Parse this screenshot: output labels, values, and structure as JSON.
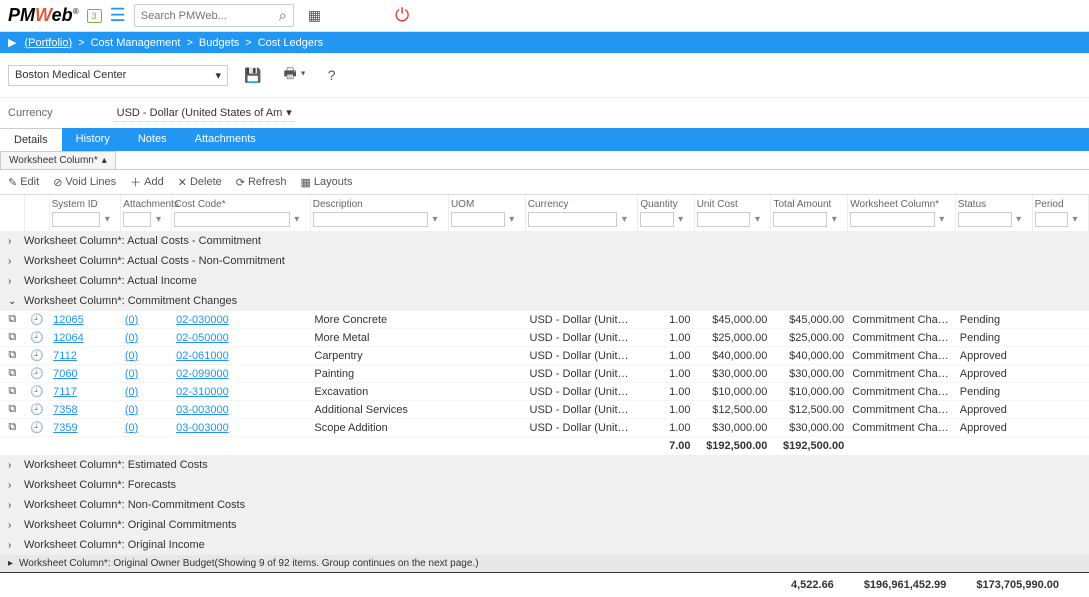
{
  "topbar": {
    "shield_value": "3",
    "search_placeholder": "Search PMWeb..."
  },
  "breadcrumb": {
    "items": [
      "(Portfolio)",
      "Cost Management",
      "Budgets",
      "Cost Ledgers"
    ]
  },
  "selector": {
    "project": "Boston Medical Center"
  },
  "currency": {
    "label": "Currency",
    "value": "USD - Dollar (United States of Am"
  },
  "tabs": [
    "Details",
    "History",
    "Notes",
    "Attachments"
  ],
  "subtab": "Worksheet Column*",
  "toolbar": {
    "edit": "Edit",
    "void": "Void Lines",
    "add": "Add",
    "delete": "Delete",
    "refresh": "Refresh",
    "layouts": "Layouts"
  },
  "columns": {
    "system_id": "System ID",
    "attachments": "Attachments",
    "cost_code": "Cost Code*",
    "description": "Description",
    "uom": "UOM",
    "currency": "Currency",
    "quantity": "Quantity",
    "unit_cost": "Unit Cost",
    "total_amount": "Total Amount",
    "worksheet_column": "Worksheet Column*",
    "status": "Status",
    "period": "Period"
  },
  "colwidths": {
    "icons": 24,
    "clock": 24,
    "system_id": 70,
    "attachments": 50,
    "cost_code": 135,
    "description": 135,
    "uom": 75,
    "currency": 110,
    "quantity": 55,
    "unit_cost": 75,
    "total_amount": 75,
    "worksheet_column": 105,
    "status": 75,
    "period": 55
  },
  "groups_collapsed_top": [
    "Worksheet Column*: Actual Costs - Commitment",
    "Worksheet Column*: Actual Costs - Non-Commitment",
    "Worksheet Column*: Actual Income"
  ],
  "group_expanded": {
    "label": "Worksheet Column*: Commitment Changes",
    "rows": [
      {
        "id": "12065",
        "att": "(0)",
        "code": "02-030000",
        "desc": "More Concrete",
        "curr": "USD - Dollar (United States",
        "qty": "1.00",
        "unit": "$45,000.00",
        "total": "$45,000.00",
        "wc": "Commitment Changes",
        "status": "Pending"
      },
      {
        "id": "12064",
        "att": "(0)",
        "code": "02-050000",
        "desc": "More Metal",
        "curr": "USD - Dollar (United States",
        "qty": "1.00",
        "unit": "$25,000.00",
        "total": "$25,000.00",
        "wc": "Commitment Changes",
        "status": "Pending"
      },
      {
        "id": "7112",
        "att": "(0)",
        "code": "02-061000",
        "desc": "Carpentry",
        "curr": "USD - Dollar (United States",
        "qty": "1.00",
        "unit": "$40,000.00",
        "total": "$40,000.00",
        "wc": "Commitment Changes",
        "status": "Approved"
      },
      {
        "id": "7060",
        "att": "(0)",
        "code": "02-099000",
        "desc": "Painting",
        "curr": "USD - Dollar (United States",
        "qty": "1.00",
        "unit": "$30,000.00",
        "total": "$30,000.00",
        "wc": "Commitment Changes",
        "status": "Approved"
      },
      {
        "id": "7117",
        "att": "(0)",
        "code": "02-310000",
        "desc": "Excavation",
        "curr": "USD - Dollar (United States",
        "qty": "1.00",
        "unit": "$10,000.00",
        "total": "$10,000.00",
        "wc": "Commitment Changes",
        "status": "Pending"
      },
      {
        "id": "7358",
        "att": "(0)",
        "code": "03-003000",
        "desc": "Additional Services",
        "curr": "USD - Dollar (United States",
        "qty": "1.00",
        "unit": "$12,500.00",
        "total": "$12,500.00",
        "wc": "Commitment Changes",
        "status": "Approved"
      },
      {
        "id": "7359",
        "att": "(0)",
        "code": "03-003000",
        "desc": "Scope Addition",
        "curr": "USD - Dollar (United States",
        "qty": "1.00",
        "unit": "$30,000.00",
        "total": "$30,000.00",
        "wc": "Commitment Changes",
        "status": "Approved"
      }
    ],
    "subtotal": {
      "qty": "7.00",
      "unit": "$192,500.00",
      "total": "$192,500.00"
    }
  },
  "groups_collapsed_bottom": [
    "Worksheet Column*: Estimated Costs",
    "Worksheet Column*: Forecasts",
    "Worksheet Column*: Non-Commitment Costs",
    "Worksheet Column*: Original Commitments",
    "Worksheet Column*: Original Income"
  ],
  "pager_group": "Worksheet Column*: Original Owner Budget(Showing 9 of 92 items. Group continues on the next page.)",
  "grand_total": {
    "qty": "4,522.66",
    "unit": "$196,961,452.99",
    "total": "$173,705,990.00"
  },
  "colors": {
    "brand_blue": "#2196f3",
    "brand_orange": "#db5a3d",
    "power_red": "#e53935"
  }
}
